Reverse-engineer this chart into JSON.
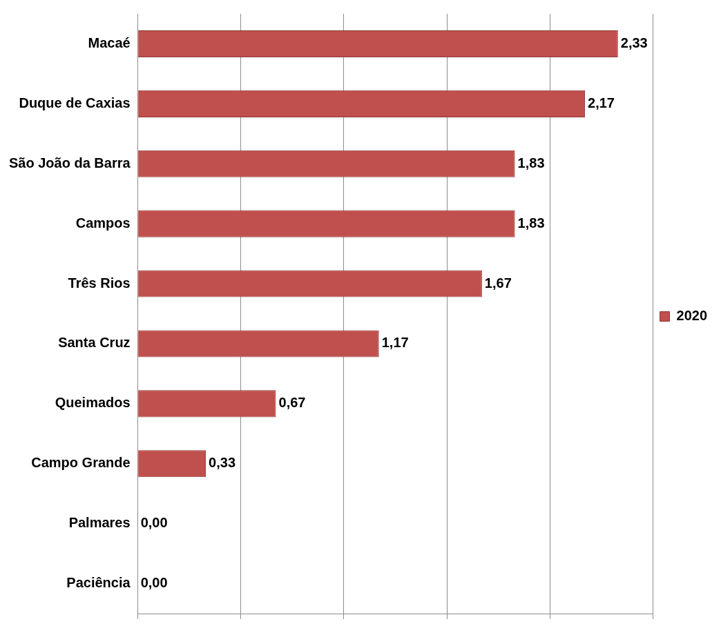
{
  "chart_data": {
    "type": "bar",
    "orientation": "horizontal",
    "categories": [
      "Macaé",
      "Duque de Caxias",
      "São João da Barra",
      "Campos",
      "Três Rios",
      "Santa Cruz",
      "Queimados",
      "Campo Grande",
      "Palmares",
      "Paciência"
    ],
    "series": [
      {
        "name": "2020",
        "color": "#c0504d",
        "values": [
          2.33,
          2.17,
          1.83,
          1.83,
          1.67,
          1.17,
          0.67,
          0.33,
          0.0,
          0.0
        ],
        "value_labels": [
          "2,33",
          "2,17",
          "1,83",
          "1,83",
          "1,67",
          "1,17",
          "0,67",
          "0,33",
          "0,00",
          "0,00"
        ]
      }
    ],
    "grid": "x",
    "legend": "right",
    "tick_labels": "y"
  }
}
